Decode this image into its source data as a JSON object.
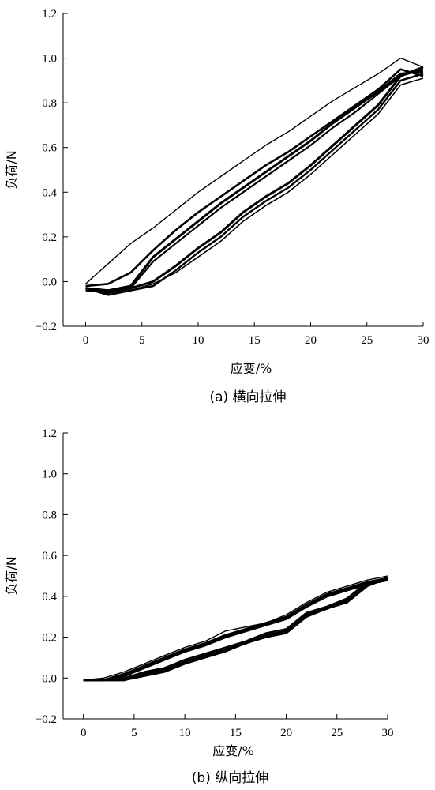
{
  "chart_data": [
    {
      "type": "line",
      "caption": "(a) 横向拉伸",
      "xlabel": "应变/%",
      "ylabel": "负荷/N",
      "xlim": [
        -2,
        30
      ],
      "ylim": [
        -0.2,
        1.2
      ],
      "xticks": [
        0,
        5,
        10,
        15,
        20,
        25,
        30
      ],
      "xtick_labels": [
        "0",
        "5",
        "10",
        "15",
        "20",
        "25",
        "30"
      ],
      "yticks": [
        -0.2,
        0.0,
        0.2,
        0.4,
        0.6,
        0.8,
        1.0,
        1.2
      ],
      "ytick_labels": [
        "−0.2",
        "0.0",
        "0.2",
        "0.4",
        "0.6",
        "0.8",
        "1.0",
        "1.2"
      ],
      "grid": false,
      "series": [
        {
          "x": [
            0,
            2,
            4,
            6,
            8,
            10,
            12,
            14,
            16,
            18,
            20,
            22,
            24,
            26,
            28,
            30
          ],
          "y": [
            -0.01,
            0.08,
            0.17,
            0.24,
            0.32,
            0.4,
            0.47,
            0.54,
            0.61,
            0.67,
            0.74,
            0.81,
            0.87,
            0.93,
            1.0,
            0.96
          ]
        },
        {
          "x": [
            0,
            2,
            4,
            6,
            8,
            10,
            12,
            14,
            16,
            18,
            20,
            22,
            24,
            26,
            28,
            30
          ],
          "y": [
            -0.02,
            -0.01,
            0.04,
            0.14,
            0.23,
            0.31,
            0.38,
            0.45,
            0.52,
            0.58,
            0.65,
            0.72,
            0.79,
            0.86,
            0.95,
            0.92
          ]
        },
        {
          "x": [
            0,
            2,
            4,
            6,
            8,
            10,
            12,
            14,
            16,
            18,
            20,
            22,
            24,
            26,
            28,
            30
          ],
          "y": [
            -0.03,
            -0.04,
            -0.02,
            0.11,
            0.19,
            0.27,
            0.35,
            0.42,
            0.49,
            0.56,
            0.63,
            0.71,
            0.78,
            0.85,
            0.93,
            0.94
          ]
        },
        {
          "x": [
            0,
            2,
            4,
            6,
            8,
            10,
            12,
            14,
            16,
            18,
            20,
            22,
            24,
            26,
            28,
            30
          ],
          "y": [
            -0.04,
            -0.05,
            -0.03,
            0.09,
            0.17,
            0.25,
            0.33,
            0.4,
            0.47,
            0.54,
            0.61,
            0.69,
            0.76,
            0.84,
            0.92,
            0.95
          ]
        },
        {
          "x": [
            0,
            2,
            4,
            6,
            8,
            10,
            12,
            14,
            16,
            18,
            20,
            22,
            24,
            26,
            28,
            30
          ],
          "y": [
            -0.03,
            -0.05,
            -0.03,
            0.0,
            0.07,
            0.15,
            0.22,
            0.31,
            0.38,
            0.44,
            0.52,
            0.61,
            0.7,
            0.79,
            0.92,
            0.96
          ]
        },
        {
          "x": [
            0,
            2,
            4,
            6,
            8,
            10,
            12,
            14,
            16,
            18,
            20,
            22,
            24,
            26,
            28,
            30
          ],
          "y": [
            -0.03,
            -0.06,
            -0.04,
            -0.02,
            0.05,
            0.13,
            0.2,
            0.29,
            0.36,
            0.42,
            0.5,
            0.59,
            0.68,
            0.77,
            0.9,
            0.93
          ]
        },
        {
          "x": [
            0,
            2,
            4,
            6,
            8,
            10,
            12,
            14,
            16,
            18,
            20,
            22,
            24,
            26,
            28,
            30
          ],
          "y": [
            -0.03,
            -0.06,
            -0.04,
            -0.01,
            0.04,
            0.11,
            0.18,
            0.27,
            0.34,
            0.4,
            0.48,
            0.57,
            0.66,
            0.75,
            0.88,
            0.91
          ]
        }
      ]
    },
    {
      "type": "line",
      "caption": "(b) 纵向拉伸",
      "xlabel": "应变/%",
      "ylabel": "负荷/N",
      "xlim": [
        -2,
        30
      ],
      "ylim": [
        -0.2,
        1.2
      ],
      "xticks": [
        0,
        5,
        10,
        15,
        20,
        25,
        30
      ],
      "xtick_labels": [
        "0",
        "5",
        "10",
        "15",
        "20",
        "25",
        "30"
      ],
      "yticks": [
        -0.2,
        0.0,
        0.2,
        0.4,
        0.6,
        0.8,
        1.0,
        1.2
      ],
      "ytick_labels": [
        "−0.2",
        "0.0",
        "0.2",
        "0.4",
        "0.6",
        "0.8",
        "1.0",
        "1.2"
      ],
      "grid": false,
      "series": [
        {
          "x": [
            0,
            2,
            4,
            6,
            8,
            10,
            12,
            14,
            16,
            18,
            20,
            22,
            24,
            26,
            28,
            30
          ],
          "y": [
            -0.01,
            0.0,
            0.03,
            0.07,
            0.11,
            0.15,
            0.18,
            0.23,
            0.25,
            0.27,
            0.31,
            0.37,
            0.42,
            0.45,
            0.48,
            0.5
          ]
        },
        {
          "x": [
            0,
            2,
            4,
            6,
            8,
            10,
            12,
            14,
            16,
            18,
            20,
            22,
            24,
            26,
            28,
            30
          ],
          "y": [
            -0.01,
            -0.01,
            0.02,
            0.06,
            0.1,
            0.14,
            0.17,
            0.21,
            0.24,
            0.27,
            0.3,
            0.36,
            0.41,
            0.44,
            0.47,
            0.49
          ]
        },
        {
          "x": [
            0,
            2,
            4,
            6,
            8,
            10,
            12,
            14,
            16,
            18,
            20,
            22,
            24,
            26,
            28,
            30
          ],
          "y": [
            -0.01,
            -0.01,
            0.01,
            0.05,
            0.09,
            0.13,
            0.16,
            0.2,
            0.23,
            0.26,
            0.29,
            0.35,
            0.4,
            0.43,
            0.46,
            0.48
          ]
        },
        {
          "x": [
            0,
            2,
            4,
            6,
            8,
            10,
            12,
            14,
            16,
            18,
            20,
            22,
            24,
            26,
            28,
            30
          ],
          "y": [
            -0.01,
            -0.01,
            0.0,
            0.03,
            0.05,
            0.09,
            0.12,
            0.15,
            0.18,
            0.22,
            0.24,
            0.32,
            0.35,
            0.39,
            0.47,
            0.49
          ]
        },
        {
          "x": [
            0,
            2,
            4,
            6,
            8,
            10,
            12,
            14,
            16,
            18,
            20,
            22,
            24,
            26,
            28,
            30
          ],
          "y": [
            -0.01,
            -0.01,
            -0.01,
            0.02,
            0.04,
            0.08,
            0.11,
            0.14,
            0.17,
            0.21,
            0.23,
            0.31,
            0.34,
            0.38,
            0.46,
            0.48
          ]
        },
        {
          "x": [
            0,
            2,
            4,
            6,
            8,
            10,
            12,
            14,
            16,
            18,
            20,
            22,
            24,
            26,
            28,
            30
          ],
          "y": [
            -0.01,
            -0.01,
            -0.01,
            0.01,
            0.03,
            0.07,
            0.1,
            0.13,
            0.17,
            0.2,
            0.22,
            0.3,
            0.34,
            0.37,
            0.45,
            0.49
          ]
        }
      ]
    }
  ]
}
